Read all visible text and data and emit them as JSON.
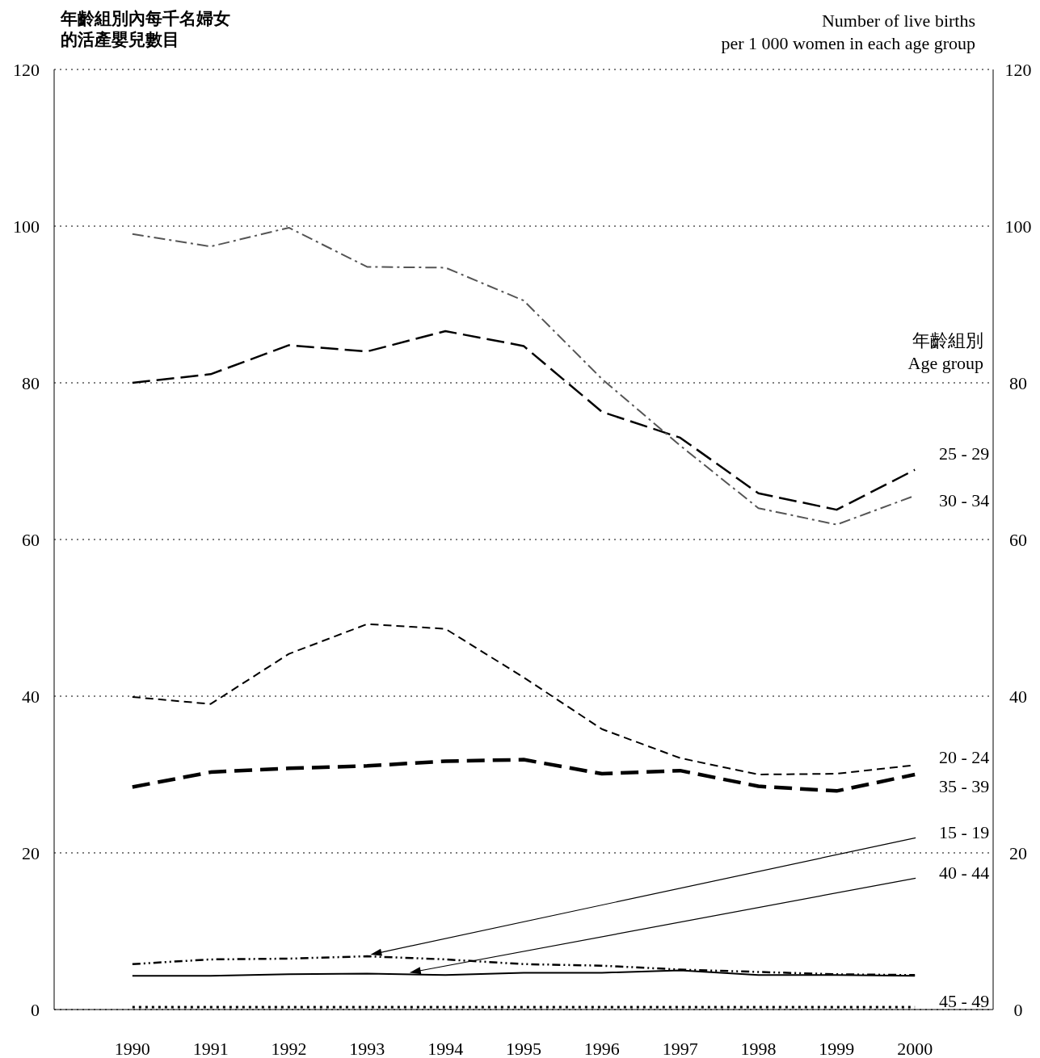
{
  "chart_data": {
    "type": "line",
    "ylabel": "年齡組別內每千名婦女的活產嬰兒數目",
    "y2label": "Number of live births\nper 1 000 women in each age group",
    "legend_title": "年齡組別\nAge group",
    "x": [
      1990,
      1991,
      1992,
      1993,
      1994,
      1995,
      1996,
      1997,
      1998,
      1999,
      2000
    ],
    "xlim": [
      1989,
      2001
    ],
    "xticks": [
      1990,
      1991,
      1992,
      1993,
      1994,
      1995,
      1996,
      1997,
      1998,
      1999,
      2000
    ],
    "ylim": [
      0,
      120
    ],
    "yticks": [
      0,
      20,
      40,
      60,
      80,
      100,
      120
    ],
    "y2lim": [
      0,
      120
    ],
    "y2ticks": [
      0,
      20,
      40,
      60,
      80,
      100,
      120
    ],
    "grid": "y",
    "marker": "none",
    "series": [
      {
        "name": "25 - 29",
        "color": "#000000",
        "line_style": "dashed",
        "values": [
          80.0,
          81.1,
          84.8,
          84.0,
          86.6,
          84.7,
          76.3,
          73.0,
          65.9,
          63.8,
          68.9
        ]
      },
      {
        "name": "30 - 34",
        "color": "#555555",
        "line_style": "dashed",
        "values": [
          99.0,
          97.4,
          99.8,
          94.8,
          94.7,
          90.5,
          80.5,
          72.0,
          64.0,
          61.9,
          65.6
        ]
      },
      {
        "name": "20 - 24",
        "color": "#000000",
        "line_style": "dashed",
        "values": [
          39.9,
          39.0,
          45.4,
          49.2,
          48.6,
          42.4,
          35.8,
          32.1,
          30.0,
          30.1,
          31.2
        ]
      },
      {
        "name": "35 - 39",
        "color": "#000000",
        "line_style": "dashed",
        "values": [
          28.4,
          30.3,
          30.8,
          31.1,
          31.7,
          31.9,
          30.1,
          30.5,
          28.5,
          27.9,
          30.0
        ]
      },
      {
        "name": "15 - 19",
        "color": "#000000",
        "line_style": "dashed",
        "values": [
          5.8,
          6.4,
          6.5,
          6.8,
          6.4,
          5.8,
          5.6,
          5.1,
          4.8,
          4.5,
          4.4
        ]
      },
      {
        "name": "40 - 44",
        "color": "#000000",
        "line_style": "solid",
        "values": [
          4.3,
          4.3,
          4.5,
          4.6,
          4.4,
          4.7,
          4.7,
          5.0,
          4.4,
          4.4,
          4.3
        ]
      },
      {
        "name": "45 - 49",
        "color": "#000000",
        "line_style": "dotted",
        "values": [
          0.3,
          0.3,
          0.3,
          0.3,
          0.3,
          0.3,
          0.3,
          0.3,
          0.3,
          0.3,
          0.3
        ]
      }
    ]
  }
}
